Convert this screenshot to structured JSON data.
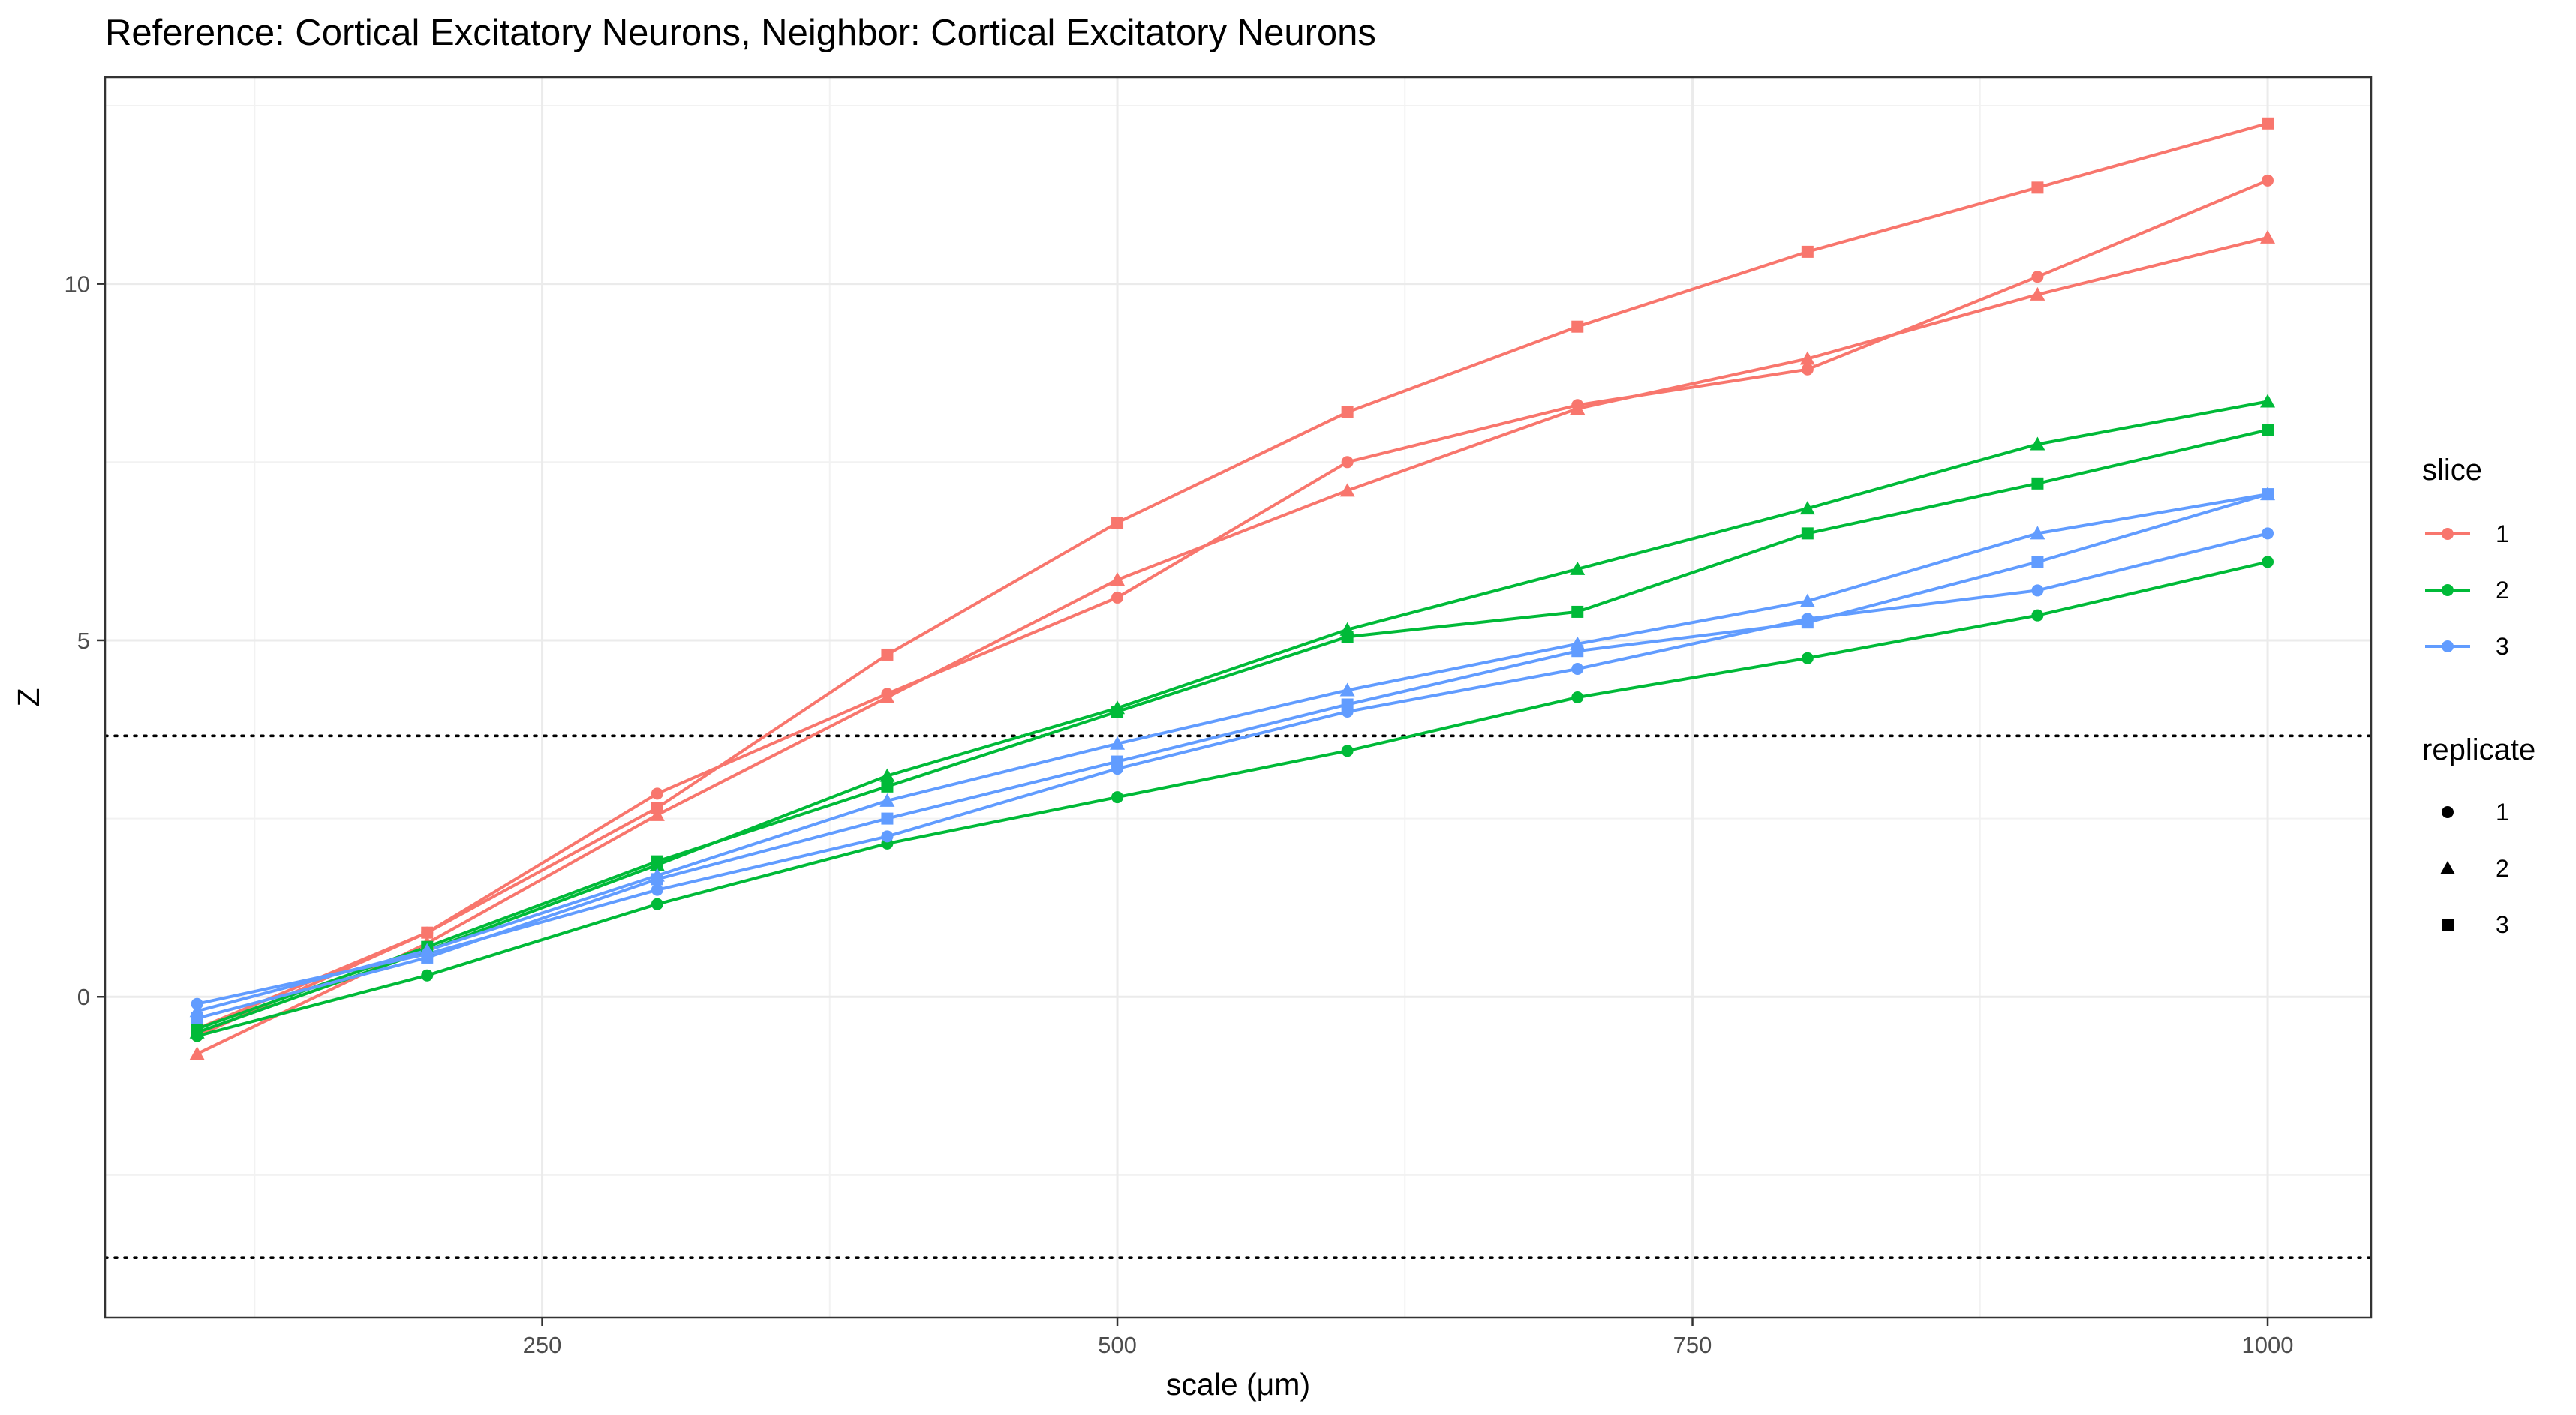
{
  "chart_data": {
    "type": "line",
    "title": "Reference: Cortical Excitatory Neurons, Neighbor: Cortical Excitatory Neurons",
    "xlabel": "scale (μm)",
    "ylabel": "Z",
    "xlim": [
      60,
      1045
    ],
    "ylim": [
      -4.5,
      12.9
    ],
    "x_ticks": [
      250,
      500,
      750,
      1000
    ],
    "y_ticks": [
      0,
      5,
      10
    ],
    "grid": true,
    "reference_lines": [
      3.66,
      -3.66
    ],
    "x": [
      100,
      200,
      300,
      400,
      500,
      600,
      700,
      800,
      900,
      1000
    ],
    "series": [
      {
        "slice": "1",
        "replicate": "1",
        "values": [
          -0.55,
          0.9,
          2.85,
          4.25,
          5.6,
          7.5,
          8.3,
          8.8,
          10.1,
          11.45
        ]
      },
      {
        "slice": "1",
        "replicate": "2",
        "values": [
          -0.8,
          0.75,
          2.55,
          4.2,
          5.85,
          7.1,
          8.25,
          8.95,
          9.85,
          10.65
        ]
      },
      {
        "slice": "1",
        "replicate": "3",
        "values": [
          -0.45,
          0.9,
          2.65,
          4.8,
          6.65,
          8.2,
          9.4,
          10.45,
          11.35,
          12.25
        ]
      },
      {
        "slice": "2",
        "replicate": "1",
        "values": [
          -0.55,
          0.3,
          1.3,
          2.15,
          2.8,
          3.45,
          4.2,
          4.75,
          5.35,
          6.1
        ]
      },
      {
        "slice": "2",
        "replicate": "2",
        "values": [
          -0.5,
          0.65,
          1.85,
          3.1,
          4.05,
          5.15,
          6.0,
          6.85,
          7.75,
          8.35
        ]
      },
      {
        "slice": "2",
        "replicate": "3",
        "values": [
          -0.45,
          0.7,
          1.9,
          2.95,
          4.0,
          5.05,
          5.4,
          6.5,
          7.2,
          7.95
        ]
      },
      {
        "slice": "3",
        "replicate": "1",
        "values": [
          -0.1,
          0.6,
          1.5,
          2.25,
          3.2,
          4.0,
          4.6,
          5.3,
          5.7,
          6.5
        ]
      },
      {
        "slice": "3",
        "replicate": "2",
        "values": [
          -0.2,
          0.65,
          1.7,
          2.75,
          3.55,
          4.3,
          4.95,
          5.55,
          6.5,
          7.05
        ]
      },
      {
        "slice": "3",
        "replicate": "3",
        "values": [
          -0.3,
          0.55,
          1.65,
          2.5,
          3.3,
          4.1,
          4.85,
          5.25,
          6.1,
          7.05
        ]
      }
    ],
    "legend": {
      "position": "right",
      "slice": {
        "title": "slice",
        "entries": [
          {
            "label": "1",
            "color": "#F8766D"
          },
          {
            "label": "2",
            "color": "#00BA38"
          },
          {
            "label": "3",
            "color": "#619CFF"
          }
        ]
      },
      "replicate": {
        "title": "replicate",
        "entries": [
          {
            "label": "1",
            "shape": "circle"
          },
          {
            "label": "2",
            "shape": "triangle"
          },
          {
            "label": "3",
            "shape": "square"
          }
        ]
      }
    }
  }
}
